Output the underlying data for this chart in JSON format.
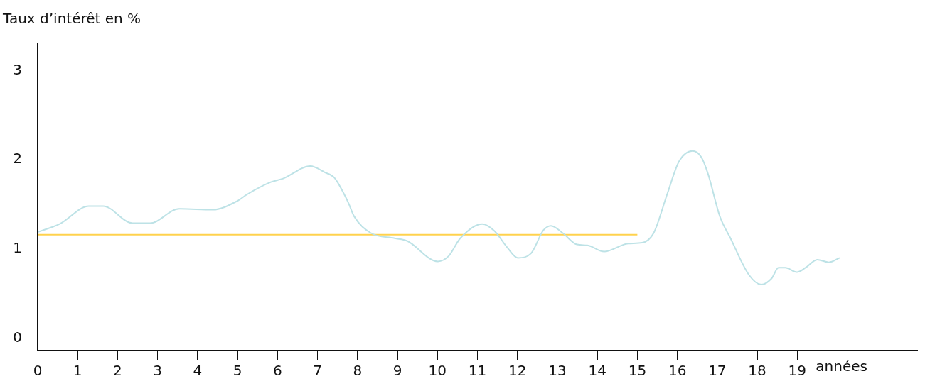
{
  "chart_data": {
    "type": "line",
    "ylabel": "Taux d’intérêt en %",
    "xlabel": "années",
    "xlim": [
      0,
      22
    ],
    "xticks": [
      0,
      1,
      2,
      3,
      4,
      5,
      6,
      7,
      8,
      9,
      10,
      11,
      12,
      13,
      14,
      15,
      16,
      17,
      18,
      19
    ],
    "ylim": [
      -0.14,
      3.3
    ],
    "yticks": [
      0,
      1,
      2,
      3
    ],
    "grid": false,
    "legend": false,
    "marker": "none",
    "line_style": "solid",
    "series": [
      {
        "color": "#bde2e6",
        "x": [
          0,
          0.55,
          1.28,
          1.64,
          2.37,
          2.81,
          3.54,
          4.38,
          5.0,
          5.23,
          5.83,
          6.14,
          6.82,
          7.18,
          7.42,
          7.66,
          7.78,
          7.91,
          8.33,
          8.93,
          9.24,
          10.01,
          10.28,
          10.57,
          11.12,
          11.43,
          11.74,
          12.01,
          12.34,
          12.65,
          12.84,
          13.13,
          13.49,
          13.75,
          14.17,
          14.77,
          15.12,
          15.41,
          15.75,
          16.04,
          16.38,
          16.6,
          16.77,
          17.06,
          17.33,
          17.79,
          18.1,
          18.36,
          18.53,
          18.7,
          18.99,
          19.21,
          19.5,
          19.79,
          20.06
        ],
        "values": [
          1.19,
          1.28,
          1.48,
          1.48,
          1.29,
          1.29,
          1.45,
          1.44,
          1.54,
          1.61,
          1.75,
          1.79,
          1.93,
          1.86,
          1.8,
          1.62,
          1.51,
          1.37,
          1.18,
          1.12,
          1.09,
          0.86,
          0.92,
          1.12,
          1.28,
          1.2,
          1.02,
          0.9,
          0.95,
          1.21,
          1.26,
          1.18,
          1.05,
          1.04,
          0.97,
          1.06,
          1.07,
          1.18,
          1.62,
          1.98,
          2.1,
          2.03,
          1.84,
          1.37,
          1.12,
          0.71,
          0.6,
          0.67,
          0.79,
          0.79,
          0.74,
          0.79,
          0.88,
          0.85,
          0.9
        ]
      },
      {
        "color": "#ffd24d",
        "x": [
          0,
          15
        ],
        "values": [
          1.16,
          1.16
        ]
      }
    ]
  }
}
